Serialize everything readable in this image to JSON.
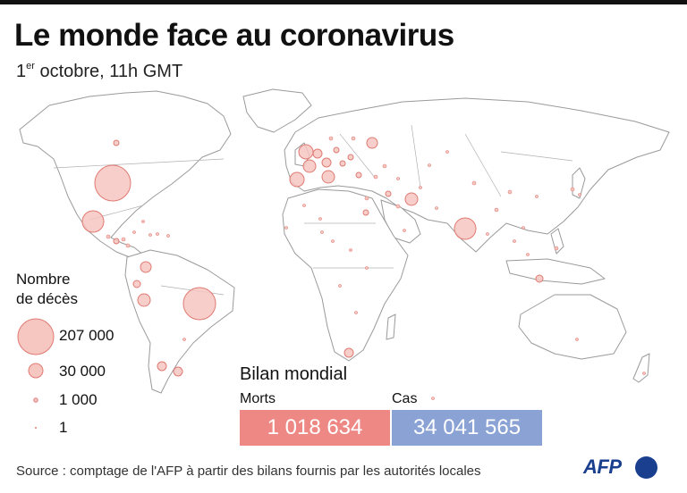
{
  "header": {
    "title": "Le monde face au coronavirus",
    "subtitle_sup": "er",
    "subtitle_day": "1",
    "subtitle_rest": " octobre, 11h GMT"
  },
  "legend": {
    "title_line1": "Nombre",
    "title_line2": "de décès",
    "items": [
      {
        "label": "207 000"
      },
      {
        "label": "30 000"
      },
      {
        "label": "1 000"
      },
      {
        "label": "1"
      }
    ]
  },
  "bilan": {
    "title": "Bilan mondial",
    "deaths_label": "Morts",
    "deaths_value": "1 018 634",
    "cases_label": "Cas",
    "cases_value": "34 041 565"
  },
  "source": "Source : comptage de l'AFP à partir des bilans fournis par les autorités locales",
  "logo": "AFP",
  "colors": {
    "bubble_fill": "#f6c6c1",
    "bubble_stroke": "#e07a73",
    "deaths_box": "#ee8885",
    "cases_box": "#8aa2d4",
    "land": "#ffffff",
    "border": "#9a9a9a",
    "brand": "#1b3f8f"
  }
}
